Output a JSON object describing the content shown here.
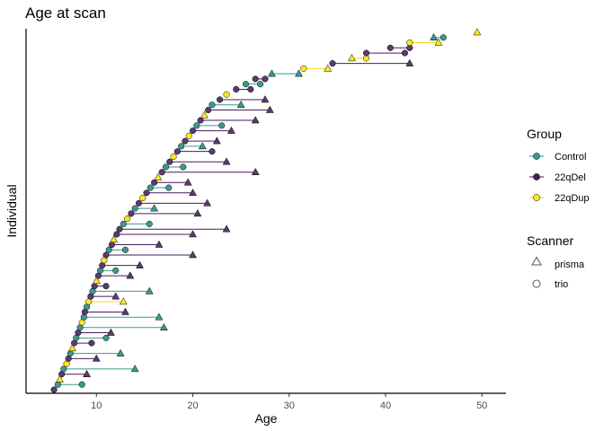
{
  "chart_data": {
    "type": "scatter",
    "title": "Age at scan",
    "xlabel": "Age",
    "ylabel": "Individual",
    "xlim": [
      2.7,
      52.5
    ],
    "x_ticks": [
      "10",
      "20",
      "30",
      "40",
      "50"
    ],
    "x_tick_values": [
      10,
      20,
      30,
      40,
      50
    ],
    "grid": false,
    "legend_position": "right",
    "group_legend": {
      "title": "Group",
      "entries": [
        {
          "label": "Control",
          "color": "#3a9a8f"
        },
        {
          "label": "22qDel",
          "color": "#461e57"
        },
        {
          "label": "22qDup",
          "color": "#fde725"
        }
      ]
    },
    "scanner_legend": {
      "title": "Scanner",
      "entries": [
        {
          "label": "prisma",
          "shape": "triangle"
        },
        {
          "label": "trio",
          "shape": "circle"
        }
      ]
    },
    "series_colors": {
      "Control": {
        "fill": "#3a9a8f",
        "line": "#3a9a8f"
      },
      "22qDel": {
        "fill": "#5b3a6e",
        "line": "#461e57"
      },
      "22qDup": {
        "fill": "#fde725",
        "line": "#f2d81c"
      }
    },
    "individuals_estimated": [
      {
        "group": "22qDel",
        "scans": [
          {
            "age": 5.6,
            "scanner": "trio"
          }
        ]
      },
      {
        "group": "Control",
        "scans": [
          {
            "age": 6.0,
            "scanner": "trio"
          },
          {
            "age": 8.5,
            "scanner": "trio"
          }
        ]
      },
      {
        "group": "22qDup",
        "scans": [
          {
            "age": 6.2,
            "scanner": "triangle_na"
          }
        ]
      },
      {
        "group": "22qDel",
        "scans": [
          {
            "age": 6.4,
            "scanner": "trio"
          },
          {
            "age": 9.0,
            "scanner": "prisma"
          }
        ]
      },
      {
        "group": "Control",
        "scans": [
          {
            "age": 6.6,
            "scanner": "trio"
          },
          {
            "age": 14.0,
            "scanner": "prisma"
          }
        ]
      },
      {
        "group": "22qDup",
        "scans": [
          {
            "age": 6.9,
            "scanner": "trio"
          }
        ]
      },
      {
        "group": "22qDel",
        "scans": [
          {
            "age": 7.1,
            "scanner": "trio"
          },
          {
            "age": 10.0,
            "scanner": "prisma"
          }
        ]
      },
      {
        "group": "Control",
        "scans": [
          {
            "age": 7.3,
            "scanner": "trio"
          },
          {
            "age": 12.5,
            "scanner": "prisma"
          }
        ]
      },
      {
        "group": "22qDup",
        "scans": [
          {
            "age": 7.5,
            "scanner": "prisma"
          }
        ]
      },
      {
        "group": "22qDel",
        "scans": [
          {
            "age": 7.7,
            "scanner": "trio"
          },
          {
            "age": 9.5,
            "scanner": "trio"
          }
        ]
      },
      {
        "group": "Control",
        "scans": [
          {
            "age": 7.9,
            "scanner": "trio"
          },
          {
            "age": 11.0,
            "scanner": "trio"
          }
        ]
      },
      {
        "group": "22qDel",
        "scans": [
          {
            "age": 8.1,
            "scanner": "trio"
          },
          {
            "age": 11.5,
            "scanner": "prisma"
          }
        ]
      },
      {
        "group": "Control",
        "scans": [
          {
            "age": 8.3,
            "scanner": "trio"
          },
          {
            "age": 17.0,
            "scanner": "prisma"
          }
        ]
      },
      {
        "group": "22qDup",
        "scans": [
          {
            "age": 8.5,
            "scanner": "trio"
          }
        ]
      },
      {
        "group": "Control",
        "scans": [
          {
            "age": 8.7,
            "scanner": "trio"
          },
          {
            "age": 16.5,
            "scanner": "prisma"
          }
        ]
      },
      {
        "group": "22qDel",
        "scans": [
          {
            "age": 8.8,
            "scanner": "trio"
          },
          {
            "age": 13.0,
            "scanner": "prisma"
          }
        ]
      },
      {
        "group": "Control",
        "scans": [
          {
            "age": 9.0,
            "scanner": "trio"
          }
        ]
      },
      {
        "group": "22qDup",
        "scans": [
          {
            "age": 9.2,
            "scanner": "trio"
          },
          {
            "age": 12.8,
            "scanner": "prisma"
          }
        ]
      },
      {
        "group": "22qDel",
        "scans": [
          {
            "age": 9.4,
            "scanner": "trio"
          },
          {
            "age": 12.0,
            "scanner": "prisma"
          }
        ]
      },
      {
        "group": "Control",
        "scans": [
          {
            "age": 9.6,
            "scanner": "trio"
          },
          {
            "age": 15.5,
            "scanner": "prisma"
          }
        ]
      },
      {
        "group": "22qDel",
        "scans": [
          {
            "age": 9.8,
            "scanner": "trio"
          },
          {
            "age": 11.0,
            "scanner": "trio"
          }
        ]
      },
      {
        "group": "22qDup",
        "scans": [
          {
            "age": 10.0,
            "scanner": "prisma"
          }
        ]
      },
      {
        "group": "22qDel",
        "scans": [
          {
            "age": 10.2,
            "scanner": "trio"
          },
          {
            "age": 13.5,
            "scanner": "prisma"
          }
        ]
      },
      {
        "group": "Control",
        "scans": [
          {
            "age": 10.4,
            "scanner": "trio"
          },
          {
            "age": 12.0,
            "scanner": "trio"
          }
        ]
      },
      {
        "group": "22qDel",
        "scans": [
          {
            "age": 10.6,
            "scanner": "trio"
          },
          {
            "age": 14.5,
            "scanner": "prisma"
          }
        ]
      },
      {
        "group": "22qDup",
        "scans": [
          {
            "age": 10.8,
            "scanner": "trio"
          }
        ]
      },
      {
        "group": "22qDel",
        "scans": [
          {
            "age": 11.0,
            "scanner": "trio"
          },
          {
            "age": 20.0,
            "scanner": "prisma"
          }
        ]
      },
      {
        "group": "Control",
        "scans": [
          {
            "age": 11.3,
            "scanner": "trio"
          },
          {
            "age": 13.0,
            "scanner": "trio"
          }
        ]
      },
      {
        "group": "22qDel",
        "scans": [
          {
            "age": 11.6,
            "scanner": "trio"
          },
          {
            "age": 16.5,
            "scanner": "prisma"
          }
        ]
      },
      {
        "group": "22qDup",
        "scans": [
          {
            "age": 11.8,
            "scanner": "prisma"
          }
        ]
      },
      {
        "group": "22qDel",
        "scans": [
          {
            "age": 12.1,
            "scanner": "trio"
          },
          {
            "age": 20.0,
            "scanner": "prisma"
          }
        ]
      },
      {
        "group": "22qDel",
        "scans": [
          {
            "age": 12.4,
            "scanner": "trio"
          },
          {
            "age": 23.5,
            "scanner": "prisma"
          }
        ]
      },
      {
        "group": "Control",
        "scans": [
          {
            "age": 12.8,
            "scanner": "trio"
          },
          {
            "age": 15.5,
            "scanner": "trio"
          }
        ]
      },
      {
        "group": "22qDup",
        "scans": [
          {
            "age": 13.2,
            "scanner": "trio"
          }
        ]
      },
      {
        "group": "22qDel",
        "scans": [
          {
            "age": 13.6,
            "scanner": "trio"
          },
          {
            "age": 20.5,
            "scanner": "prisma"
          }
        ]
      },
      {
        "group": "Control",
        "scans": [
          {
            "age": 14.0,
            "scanner": "trio"
          },
          {
            "age": 16.0,
            "scanner": "prisma"
          }
        ]
      },
      {
        "group": "22qDel",
        "scans": [
          {
            "age": 14.4,
            "scanner": "trio"
          },
          {
            "age": 21.5,
            "scanner": "prisma"
          }
        ]
      },
      {
        "group": "22qDup",
        "scans": [
          {
            "age": 14.8,
            "scanner": "trio"
          }
        ]
      },
      {
        "group": "22qDel",
        "scans": [
          {
            "age": 15.2,
            "scanner": "trio"
          },
          {
            "age": 20.0,
            "scanner": "prisma"
          }
        ]
      },
      {
        "group": "Control",
        "scans": [
          {
            "age": 15.6,
            "scanner": "trio"
          },
          {
            "age": 17.5,
            "scanner": "trio"
          }
        ]
      },
      {
        "group": "22qDel",
        "scans": [
          {
            "age": 16.0,
            "scanner": "trio"
          },
          {
            "age": 19.5,
            "scanner": "prisma"
          }
        ]
      },
      {
        "group": "22qDup",
        "scans": [
          {
            "age": 16.4,
            "scanner": "prisma"
          }
        ]
      },
      {
        "group": "22qDel",
        "scans": [
          {
            "age": 16.8,
            "scanner": "trio"
          },
          {
            "age": 26.5,
            "scanner": "prisma"
          }
        ]
      },
      {
        "group": "Control",
        "scans": [
          {
            "age": 17.2,
            "scanner": "trio"
          },
          {
            "age": 19.0,
            "scanner": "trio"
          }
        ]
      },
      {
        "group": "22qDel",
        "scans": [
          {
            "age": 17.6,
            "scanner": "trio"
          },
          {
            "age": 23.5,
            "scanner": "prisma"
          }
        ]
      },
      {
        "group": "22qDup",
        "scans": [
          {
            "age": 18.0,
            "scanner": "trio"
          }
        ]
      },
      {
        "group": "22qDel",
        "scans": [
          {
            "age": 18.4,
            "scanner": "trio"
          },
          {
            "age": 22.0,
            "scanner": "trio"
          }
        ]
      },
      {
        "group": "Control",
        "scans": [
          {
            "age": 18.8,
            "scanner": "trio"
          },
          {
            "age": 21.0,
            "scanner": "prisma"
          }
        ]
      },
      {
        "group": "22qDel",
        "scans": [
          {
            "age": 19.2,
            "scanner": "trio"
          },
          {
            "age": 22.5,
            "scanner": "prisma"
          }
        ]
      },
      {
        "group": "22qDup",
        "scans": [
          {
            "age": 19.6,
            "scanner": "trio"
          }
        ]
      },
      {
        "group": "22qDel",
        "scans": [
          {
            "age": 20.0,
            "scanner": "trio"
          },
          {
            "age": 24.0,
            "scanner": "prisma"
          }
        ]
      },
      {
        "group": "Control",
        "scans": [
          {
            "age": 20.4,
            "scanner": "trio"
          },
          {
            "age": 23.0,
            "scanner": "trio"
          }
        ]
      },
      {
        "group": "22qDel",
        "scans": [
          {
            "age": 20.8,
            "scanner": "trio"
          },
          {
            "age": 26.5,
            "scanner": "prisma"
          }
        ]
      },
      {
        "group": "22qDup",
        "scans": [
          {
            "age": 21.2,
            "scanner": "prisma"
          }
        ]
      },
      {
        "group": "22qDel",
        "scans": [
          {
            "age": 21.6,
            "scanner": "trio"
          },
          {
            "age": 28.0,
            "scanner": "prisma"
          }
        ]
      },
      {
        "group": "Control",
        "scans": [
          {
            "age": 22.0,
            "scanner": "trio"
          },
          {
            "age": 25.0,
            "scanner": "prisma"
          }
        ]
      },
      {
        "group": "22qDel",
        "scans": [
          {
            "age": 22.8,
            "scanner": "trio"
          },
          {
            "age": 27.5,
            "scanner": "prisma"
          }
        ]
      },
      {
        "group": "22qDup",
        "scans": [
          {
            "age": 23.5,
            "scanner": "trio"
          }
        ]
      },
      {
        "group": "22qDel",
        "scans": [
          {
            "age": 24.5,
            "scanner": "trio"
          },
          {
            "age": 26.0,
            "scanner": "trio"
          }
        ]
      },
      {
        "group": "Control",
        "scans": [
          {
            "age": 25.5,
            "scanner": "trio"
          },
          {
            "age": 27.0,
            "scanner": "trio"
          }
        ]
      },
      {
        "group": "22qDel",
        "scans": [
          {
            "age": 26.5,
            "scanner": "trio"
          },
          {
            "age": 27.5,
            "scanner": "trio"
          }
        ]
      },
      {
        "group": "Control",
        "scans": [
          {
            "age": 28.2,
            "scanner": "prisma"
          },
          {
            "age": 31.0,
            "scanner": "prisma"
          }
        ]
      },
      {
        "group": "22qDup",
        "scans": [
          {
            "age": 31.5,
            "scanner": "trio"
          },
          {
            "age": 34.0,
            "scanner": "prisma"
          }
        ]
      },
      {
        "group": "22qDel",
        "scans": [
          {
            "age": 34.5,
            "scanner": "trio"
          },
          {
            "age": 42.5,
            "scanner": "prisma"
          }
        ]
      },
      {
        "group": "22qDup",
        "scans": [
          {
            "age": 36.5,
            "scanner": "prisma"
          },
          {
            "age": 38.0,
            "scanner": "trio"
          }
        ]
      },
      {
        "group": "22qDel",
        "scans": [
          {
            "age": 38.0,
            "scanner": "trio"
          },
          {
            "age": 42.0,
            "scanner": "trio"
          }
        ]
      },
      {
        "group": "22qDel",
        "scans": [
          {
            "age": 40.5,
            "scanner": "trio"
          },
          {
            "age": 42.5,
            "scanner": "trio"
          }
        ]
      },
      {
        "group": "22qDup",
        "scans": [
          {
            "age": 42.5,
            "scanner": "trio"
          },
          {
            "age": 45.5,
            "scanner": "prisma"
          }
        ]
      },
      {
        "group": "Control",
        "scans": [
          {
            "age": 45.0,
            "scanner": "prisma"
          },
          {
            "age": 46.0,
            "scanner": "trio"
          }
        ]
      },
      {
        "group": "22qDup",
        "scans": [
          {
            "age": 49.5,
            "scanner": "prisma"
          }
        ]
      }
    ]
  }
}
